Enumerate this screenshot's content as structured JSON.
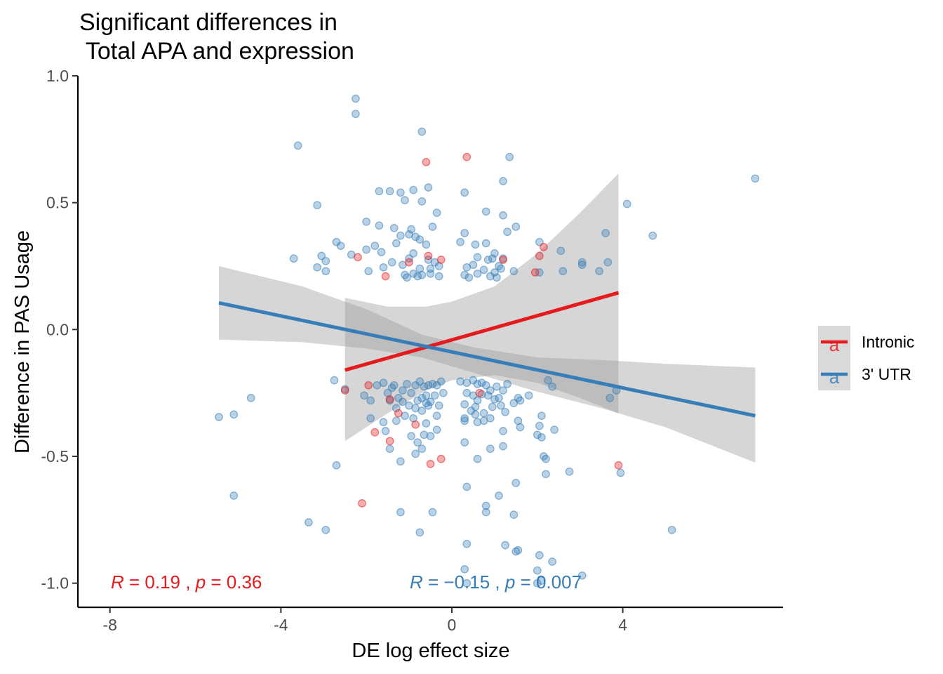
{
  "chart_data": {
    "type": "scatter",
    "title_line1": "Significant differences in",
    "title_line2": " Total APA and expression",
    "xlabel": "DE log effect size",
    "ylabel": "Difference in PAS Usage",
    "xlim": [
      -8.75,
      7.75
    ],
    "ylim": [
      -1.095,
      1.0
    ],
    "x_ticks": [
      -8,
      -4,
      0,
      4
    ],
    "x_tick_labels": [
      "-8",
      "-4",
      "0",
      "4"
    ],
    "y_ticks": [
      -1.0,
      -0.5,
      0.0,
      0.5,
      1.0
    ],
    "y_tick_labels": [
      "-1.0",
      "-0.5",
      "0.0",
      "0.5",
      "1.0"
    ],
    "grid": false,
    "legend_position": "right",
    "legend_glyph": "a",
    "series": [
      {
        "name": "Intronic",
        "color": "#E41A1C",
        "points": [
          [
            -0.6,
            0.66
          ],
          [
            0.35,
            0.68
          ],
          [
            -2.2,
            0.285
          ],
          [
            -0.55,
            0.29
          ],
          [
            -0.25,
            0.275
          ],
          [
            -1.0,
            0.265
          ],
          [
            1.2,
            0.275
          ],
          [
            -1.55,
            0.21
          ],
          [
            2.15,
            0.325
          ],
          [
            2.05,
            0.29
          ],
          [
            1.95,
            0.225
          ],
          [
            -2.5,
            -0.24
          ],
          [
            -1.95,
            -0.22
          ],
          [
            -1.45,
            -0.275
          ],
          [
            -1.25,
            -0.33
          ],
          [
            -0.85,
            -0.375
          ],
          [
            -1.8,
            -0.405
          ],
          [
            -1.45,
            -0.44
          ],
          [
            -0.25,
            -0.51
          ],
          [
            -0.5,
            -0.53
          ],
          [
            -2.1,
            -0.685
          ],
          [
            0.65,
            -0.25
          ],
          [
            3.9,
            -0.535
          ]
        ],
        "trend": {
          "x": [
            -2.5,
            3.9
          ],
          "y": [
            -0.16,
            0.145
          ]
        },
        "ci": {
          "x": [
            -2.5,
            -1.5,
            -0.6,
            0.0,
            1.0,
            2.0,
            3.0,
            3.9
          ],
          "lo": [
            -0.44,
            -0.33,
            -0.24,
            -0.2,
            -0.18,
            -0.21,
            -0.27,
            -0.33
          ],
          "hi": [
            0.125,
            0.09,
            0.09,
            0.11,
            0.17,
            0.3,
            0.46,
            0.615
          ]
        },
        "stat": {
          "R": "0.19",
          "p": "0.36"
        }
      },
      {
        "name": "3' UTR",
        "color": "#377EB8",
        "points": [
          [
            -2.25,
            0.91
          ],
          [
            -2.25,
            0.85
          ],
          [
            -0.7,
            0.78
          ],
          [
            -3.6,
            0.725
          ],
          [
            1.35,
            0.68
          ],
          [
            7.1,
            0.595
          ],
          [
            1.2,
            0.585
          ],
          [
            -1.7,
            0.545
          ],
          [
            -1.45,
            0.545
          ],
          [
            -1.2,
            0.54
          ],
          [
            -0.9,
            0.55
          ],
          [
            -0.55,
            0.56
          ],
          [
            0.3,
            0.54
          ],
          [
            -1.1,
            0.51
          ],
          [
            -0.7,
            0.505
          ],
          [
            -3.15,
            0.49
          ],
          [
            4.1,
            0.495
          ],
          [
            -0.35,
            0.46
          ],
          [
            0.8,
            0.465
          ],
          [
            1.2,
            0.45
          ],
          [
            1.5,
            0.405
          ],
          [
            -2.0,
            0.425
          ],
          [
            -1.7,
            0.41
          ],
          [
            -1.35,
            0.4
          ],
          [
            -0.95,
            0.395
          ],
          [
            -0.45,
            0.405
          ],
          [
            0.3,
            0.38
          ],
          [
            1.3,
            0.385
          ],
          [
            3.6,
            0.38
          ],
          [
            4.7,
            0.37
          ],
          [
            -1.2,
            0.37
          ],
          [
            -1.0,
            0.375
          ],
          [
            -0.85,
            0.365
          ],
          [
            -2.7,
            0.345
          ],
          [
            -2.6,
            0.33
          ],
          [
            -2.35,
            0.295
          ],
          [
            -3.05,
            0.29
          ],
          [
            -2.0,
            0.315
          ],
          [
            -1.8,
            0.33
          ],
          [
            -1.65,
            0.305
          ],
          [
            -1.3,
            0.34
          ],
          [
            -0.75,
            0.355
          ],
          [
            -0.6,
            0.335
          ],
          [
            0.2,
            0.345
          ],
          [
            0.55,
            0.335
          ],
          [
            0.8,
            0.34
          ],
          [
            1.0,
            0.3
          ],
          [
            2.05,
            0.345
          ],
          [
            2.55,
            0.31
          ],
          [
            3.05,
            0.265
          ],
          [
            3.65,
            0.265
          ],
          [
            -3.7,
            0.28
          ],
          [
            -3.15,
            0.245
          ],
          [
            -2.95,
            0.23
          ],
          [
            -2.95,
            0.27
          ],
          [
            -1.95,
            0.23
          ],
          [
            -1.6,
            0.245
          ],
          [
            -1.4,
            0.265
          ],
          [
            -1.15,
            0.255
          ],
          [
            -0.75,
            0.24
          ],
          [
            -0.5,
            0.24
          ],
          [
            -0.3,
            0.25
          ],
          [
            -0.9,
            0.22
          ],
          [
            -0.8,
            0.21
          ],
          [
            -0.7,
            0.215
          ],
          [
            -0.5,
            0.22
          ],
          [
            -0.3,
            0.21
          ],
          [
            -1.1,
            0.215
          ],
          [
            -1.05,
            0.205
          ],
          [
            0.3,
            0.215
          ],
          [
            0.4,
            0.205
          ],
          [
            0.6,
            0.22
          ],
          [
            0.75,
            0.235
          ],
          [
            0.9,
            0.21
          ],
          [
            1.0,
            0.225
          ],
          [
            1.1,
            0.25
          ],
          [
            1.15,
            0.24
          ],
          [
            0.5,
            0.255
          ],
          [
            0.35,
            0.245
          ],
          [
            0.6,
            0.285
          ],
          [
            1.05,
            0.205
          ],
          [
            1.45,
            0.23
          ],
          [
            2.05,
            0.225
          ],
          [
            2.6,
            0.23
          ],
          [
            3.45,
            0.23
          ],
          [
            3.05,
            0.255
          ],
          [
            -0.4,
            0.265
          ],
          [
            -0.55,
            0.275
          ],
          [
            -0.9,
            0.3
          ],
          [
            -1.0,
            0.28
          ],
          [
            0.95,
            0.28
          ],
          [
            0.85,
            0.275
          ],
          [
            1.2,
            0.28
          ],
          [
            -5.45,
            -0.345
          ],
          [
            -5.1,
            -0.335
          ],
          [
            -4.7,
            -0.27
          ],
          [
            -5.1,
            -0.655
          ],
          [
            -2.75,
            -0.2
          ],
          [
            -2.5,
            -0.235
          ],
          [
            -2.05,
            -0.26
          ],
          [
            -1.9,
            -0.28
          ],
          [
            -1.75,
            -0.22
          ],
          [
            -1.6,
            -0.21
          ],
          [
            -1.5,
            -0.25
          ],
          [
            -1.35,
            -0.22
          ],
          [
            -1.25,
            -0.27
          ],
          [
            -1.15,
            -0.24
          ],
          [
            -1.05,
            -0.215
          ],
          [
            -0.95,
            -0.25
          ],
          [
            -0.85,
            -0.22
          ],
          [
            -0.75,
            -0.205
          ],
          [
            -0.7,
            -0.27
          ],
          [
            -0.65,
            -0.225
          ],
          [
            -0.55,
            -0.22
          ],
          [
            -0.45,
            -0.215
          ],
          [
            -0.35,
            -0.22
          ],
          [
            -0.25,
            -0.205
          ],
          [
            -0.8,
            -0.28
          ],
          [
            -0.6,
            -0.26
          ],
          [
            -0.5,
            -0.285
          ],
          [
            -0.4,
            -0.26
          ],
          [
            -0.3,
            -0.3
          ],
          [
            -0.2,
            -0.25
          ],
          [
            -1.0,
            -0.3
          ],
          [
            -0.85,
            -0.31
          ],
          [
            -0.7,
            -0.32
          ],
          [
            -0.6,
            -0.29
          ],
          [
            -0.55,
            -0.3
          ],
          [
            -1.15,
            -0.285
          ],
          [
            -1.45,
            -0.28
          ],
          [
            -1.3,
            -0.31
          ],
          [
            -1.1,
            -0.34
          ],
          [
            -0.9,
            -0.35
          ],
          [
            -0.35,
            -0.34
          ],
          [
            -1.3,
            -0.36
          ],
          [
            -1.6,
            -0.365
          ],
          [
            -1.9,
            -0.35
          ],
          [
            -0.6,
            -0.37
          ],
          [
            -0.35,
            -0.395
          ],
          [
            -1.55,
            -0.4
          ],
          [
            -0.95,
            -0.42
          ],
          [
            -0.65,
            -0.415
          ],
          [
            -0.5,
            -0.42
          ],
          [
            -1.45,
            -0.47
          ],
          [
            -0.8,
            -0.445
          ],
          [
            -0.7,
            -0.47
          ],
          [
            -0.85,
            -0.49
          ],
          [
            -1.2,
            -0.52
          ],
          [
            -0.75,
            -0.8
          ],
          [
            -1.2,
            -0.72
          ],
          [
            -0.45,
            -0.72
          ],
          [
            -2.7,
            -0.535
          ],
          [
            -3.35,
            -0.76
          ],
          [
            -2.95,
            -0.79
          ],
          [
            -1.4,
            -0.23
          ],
          [
            0.2,
            -0.205
          ],
          [
            0.35,
            -0.21
          ],
          [
            0.5,
            -0.2
          ],
          [
            0.6,
            -0.215
          ],
          [
            0.7,
            -0.21
          ],
          [
            0.8,
            -0.22
          ],
          [
            0.9,
            -0.24
          ],
          [
            1.05,
            -0.225
          ],
          [
            1.2,
            -0.24
          ],
          [
            1.3,
            -0.215
          ],
          [
            0.35,
            -0.25
          ],
          [
            0.5,
            -0.26
          ],
          [
            0.6,
            -0.28
          ],
          [
            0.7,
            -0.255
          ],
          [
            0.85,
            -0.26
          ],
          [
            1.0,
            -0.275
          ],
          [
            1.1,
            -0.27
          ],
          [
            0.3,
            -0.295
          ],
          [
            0.45,
            -0.32
          ],
          [
            0.55,
            -0.305
          ],
          [
            0.75,
            -0.33
          ],
          [
            0.95,
            -0.305
          ],
          [
            1.15,
            -0.3
          ],
          [
            1.25,
            -0.325
          ],
          [
            1.45,
            -0.29
          ],
          [
            1.55,
            -0.27
          ],
          [
            1.6,
            -0.28
          ],
          [
            0.3,
            -0.36
          ],
          [
            0.55,
            -0.335
          ],
          [
            0.75,
            -0.36
          ],
          [
            0.9,
            -0.35
          ],
          [
            1.2,
            -0.4
          ],
          [
            1.6,
            -0.385
          ],
          [
            2.0,
            -0.415
          ],
          [
            2.1,
            -0.425
          ],
          [
            0.6,
            -0.365
          ],
          [
            1.55,
            -0.36
          ],
          [
            0.3,
            -0.35
          ],
          [
            1.8,
            -0.26
          ],
          [
            2.25,
            -0.2
          ],
          [
            2.35,
            -0.225
          ],
          [
            3.7,
            -0.27
          ],
          [
            3.85,
            -0.24
          ],
          [
            2.1,
            -0.34
          ],
          [
            2.05,
            -0.38
          ],
          [
            2.4,
            -0.395
          ],
          [
            2.15,
            -0.5
          ],
          [
            2.2,
            -0.51
          ],
          [
            0.3,
            -0.445
          ],
          [
            0.9,
            -0.47
          ],
          [
            1.2,
            -0.46
          ],
          [
            0.6,
            -0.51
          ],
          [
            2.75,
            -0.56
          ],
          [
            3.95,
            -0.565
          ],
          [
            2.2,
            -0.57
          ],
          [
            1.5,
            -0.605
          ],
          [
            0.35,
            -0.62
          ],
          [
            1.1,
            -0.655
          ],
          [
            0.8,
            -0.695
          ],
          [
            0.8,
            -0.72
          ],
          [
            1.45,
            -0.73
          ],
          [
            5.15,
            -0.79
          ],
          [
            0.35,
            -0.845
          ],
          [
            1.25,
            -0.85
          ],
          [
            1.55,
            -0.87
          ],
          [
            1.5,
            -0.875
          ],
          [
            2.05,
            -0.89
          ],
          [
            2.35,
            -0.915
          ],
          [
            2.0,
            -0.95
          ],
          [
            3.05,
            -0.97
          ],
          [
            0.3,
            -0.945
          ],
          [
            0.35,
            -1.0
          ],
          [
            2.1,
            -0.99
          ],
          [
            2.0,
            -1.0
          ]
        ],
        "trend": {
          "x": [
            -5.45,
            7.1
          ],
          "y": [
            0.105,
            -0.34
          ]
        },
        "ci": {
          "x": [
            -5.45,
            -3.5,
            -2.0,
            -0.7,
            0.5,
            2.0,
            3.5,
            5.0,
            7.1
          ],
          "lo": [
            -0.04,
            -0.05,
            -0.075,
            -0.11,
            -0.17,
            -0.245,
            -0.31,
            -0.385,
            -0.525
          ],
          "hi": [
            0.25,
            0.17,
            0.08,
            -0.02,
            -0.07,
            -0.11,
            -0.12,
            -0.135,
            -0.15
          ]
        },
        "stat": {
          "R": "−0.15",
          "p": "0.007"
        }
      }
    ]
  }
}
